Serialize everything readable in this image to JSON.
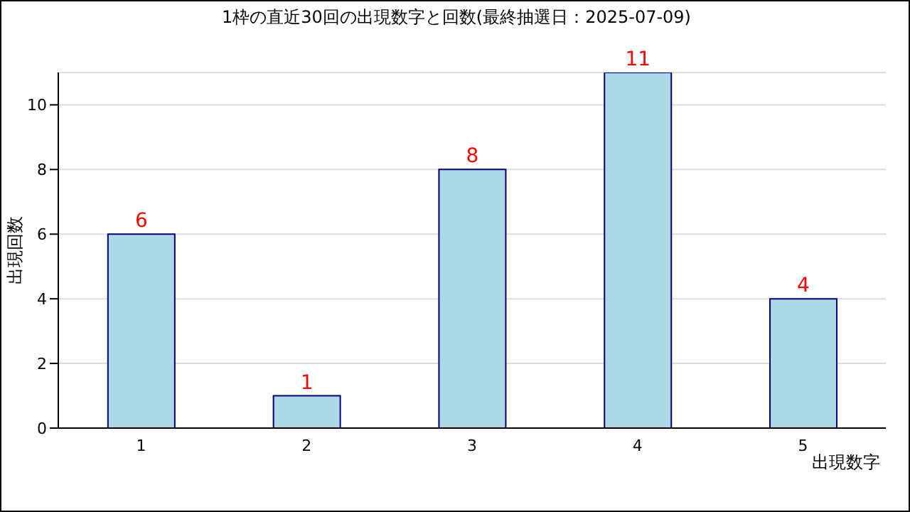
{
  "chart_data": {
    "type": "bar",
    "title": "1枠の直近30回の出現数字と回数(最終抽選日：2025-07-09)",
    "xlabel": "出現数字",
    "ylabel": "出現回数",
    "categories": [
      "1",
      "2",
      "3",
      "4",
      "5"
    ],
    "values": [
      6,
      1,
      8,
      11,
      4
    ],
    "color": "#add8e6",
    "ylim": [
      0,
      11
    ],
    "yticks": [
      0,
      2,
      4,
      6,
      8,
      10
    ],
    "grid": "y",
    "data_labels": true
  }
}
